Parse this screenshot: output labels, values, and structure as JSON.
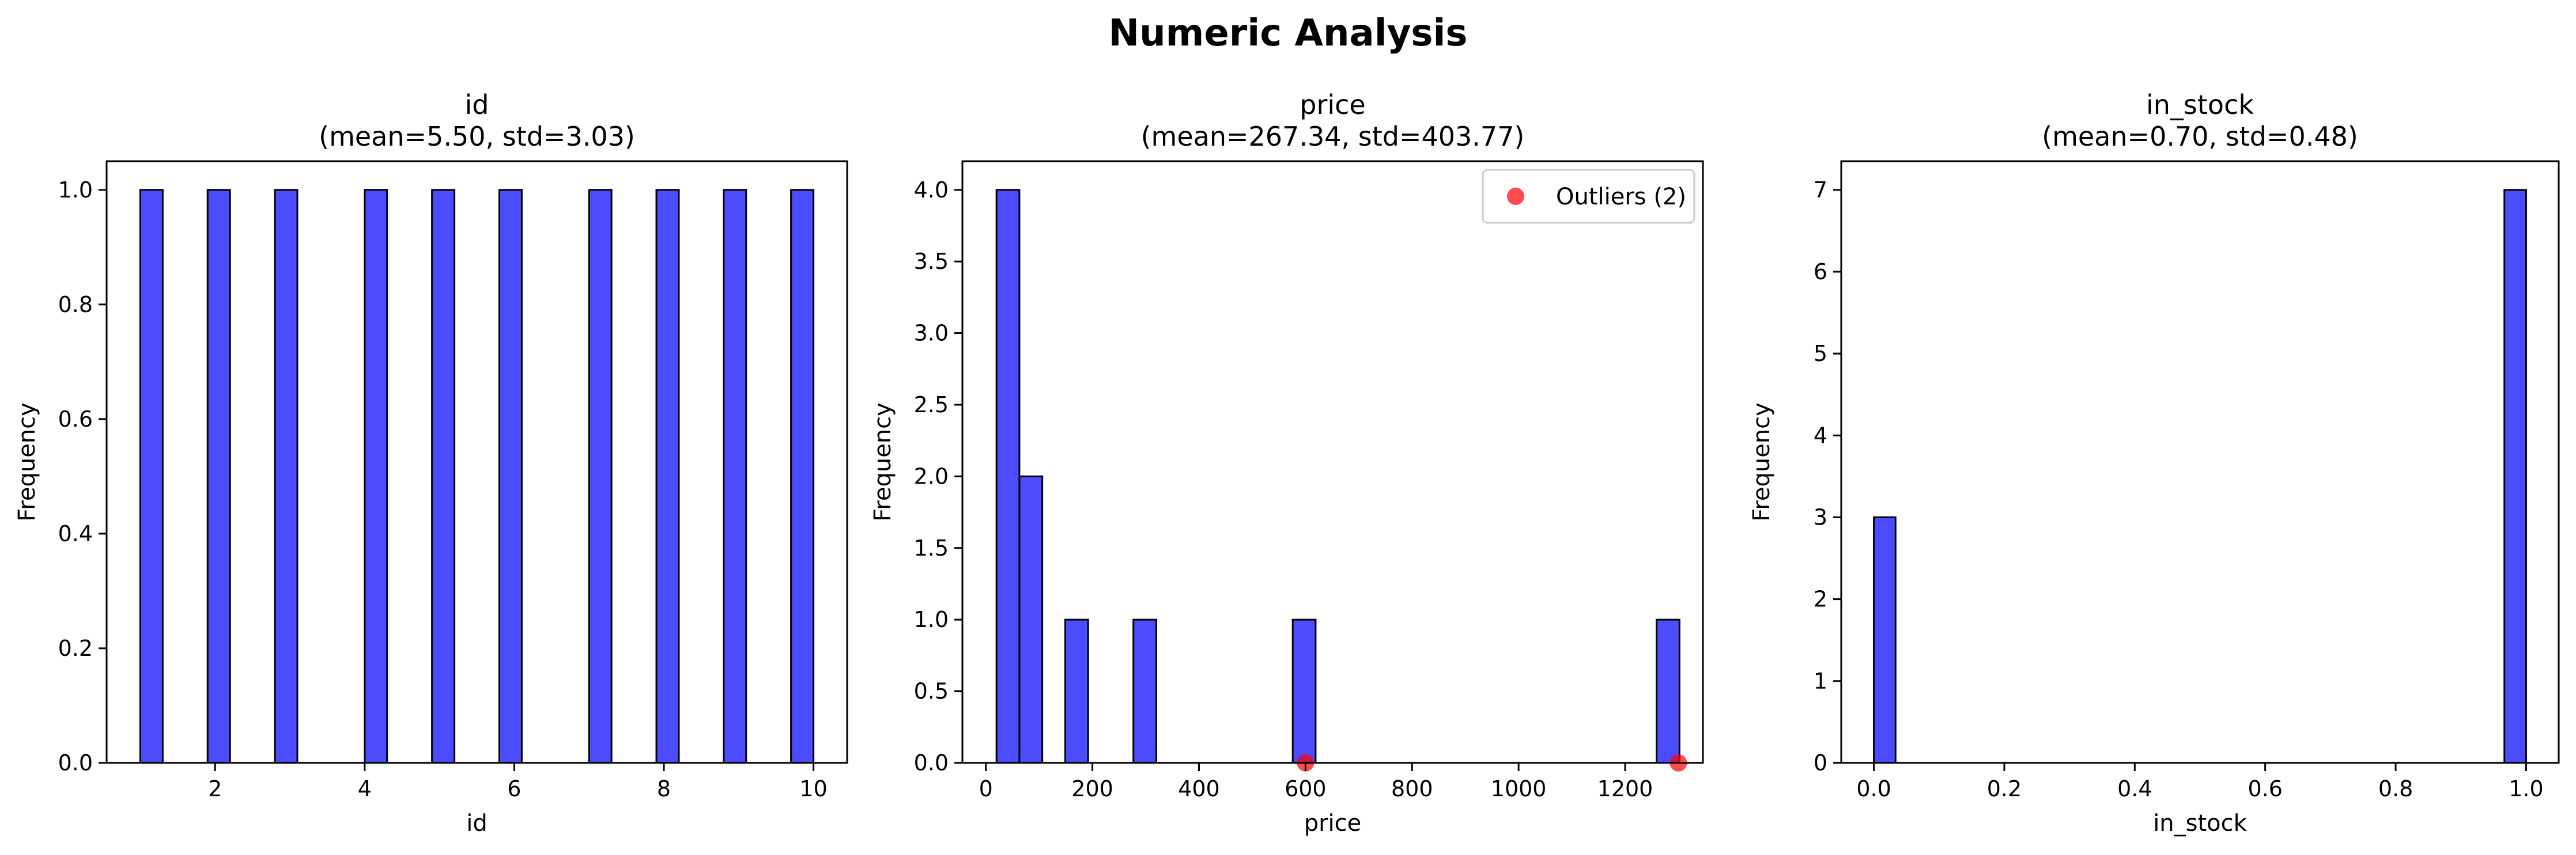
{
  "title": "Numeric Analysis",
  "colors": {
    "bar": "#0000ff",
    "bar_edge": "#000000",
    "outlier": "#ff0000"
  },
  "chart_data": [
    {
      "type": "bar",
      "title": "id",
      "subtitle": "(mean=5.50, std=3.03)",
      "xlabel": "id",
      "ylabel": "Frequency",
      "xlim": [
        0.55,
        10.45
      ],
      "ylim": [
        0,
        1.05
      ],
      "xticks": [
        2,
        4,
        6,
        8,
        10
      ],
      "xtick_labels": [
        "2",
        "4",
        "6",
        "8",
        "10"
      ],
      "yticks": [
        0,
        0.2,
        0.4,
        0.6,
        0.8,
        1.0
      ],
      "ytick_labels": [
        "0.0",
        "0.2",
        "0.4",
        "0.6",
        "0.8",
        "1.0"
      ],
      "bins": [
        {
          "x0": 1.0,
          "x1": 1.3,
          "value": 1
        },
        {
          "x0": 1.9,
          "x1": 2.2,
          "value": 1
        },
        {
          "x0": 2.8,
          "x1": 3.1,
          "value": 1
        },
        {
          "x0": 4.0,
          "x1": 4.3,
          "value": 1
        },
        {
          "x0": 4.9,
          "x1": 5.2,
          "value": 1
        },
        {
          "x0": 5.8,
          "x1": 6.1,
          "value": 1
        },
        {
          "x0": 7.0,
          "x1": 7.3,
          "value": 1
        },
        {
          "x0": 7.9,
          "x1": 8.2,
          "value": 1
        },
        {
          "x0": 8.8,
          "x1": 9.1,
          "value": 1
        },
        {
          "x0": 9.7,
          "x1": 10.0,
          "value": 1
        }
      ],
      "outliers": null
    },
    {
      "type": "bar",
      "title": "price",
      "subtitle": "(mean=267.34, std=403.77)",
      "xlabel": "price",
      "ylabel": "Frequency",
      "xlim": [
        -44,
        1346
      ],
      "ylim": [
        0,
        4.2
      ],
      "xticks": [
        0,
        200,
        400,
        600,
        800,
        1000,
        1200
      ],
      "xtick_labels": [
        "0",
        "200",
        "400",
        "600",
        "800",
        "1000",
        "1200"
      ],
      "yticks": [
        0,
        0.5,
        1.0,
        1.5,
        2.0,
        2.5,
        3.0,
        3.5,
        4.0
      ],
      "ytick_labels": [
        "0.0",
        "0.5",
        "1.0",
        "1.5",
        "2.0",
        "2.5",
        "3.0",
        "3.5",
        "4.0"
      ],
      "bins": [
        {
          "x0": 20,
          "x1": 63,
          "value": 4
        },
        {
          "x0": 63,
          "x1": 106,
          "value": 2
        },
        {
          "x0": 149,
          "x1": 192,
          "value": 1
        },
        {
          "x0": 277,
          "x1": 320,
          "value": 1
        },
        {
          "x0": 576,
          "x1": 619,
          "value": 1
        },
        {
          "x0": 1259,
          "x1": 1302,
          "value": 1
        }
      ],
      "outliers": {
        "label": "Outliers (2)",
        "x": [
          600,
          1300
        ],
        "y": [
          0,
          0
        ]
      }
    },
    {
      "type": "bar",
      "title": "in_stock",
      "subtitle": "(mean=0.70, std=0.48)",
      "xlabel": "in_stock",
      "ylabel": "Frequency",
      "xlim": [
        -0.05,
        1.05
      ],
      "ylim": [
        0,
        7.35
      ],
      "xticks": [
        0,
        0.2,
        0.4,
        0.6,
        0.8,
        1.0
      ],
      "xtick_labels": [
        "0.0",
        "0.2",
        "0.4",
        "0.6",
        "0.8",
        "1.0"
      ],
      "yticks": [
        0,
        1,
        2,
        3,
        4,
        5,
        6,
        7
      ],
      "ytick_labels": [
        "0",
        "1",
        "2",
        "3",
        "4",
        "5",
        "6",
        "7"
      ],
      "bins": [
        {
          "x0": 0.0,
          "x1": 0.0333,
          "value": 3
        },
        {
          "x0": 0.9667,
          "x1": 1.0,
          "value": 7
        }
      ],
      "outliers": null
    }
  ]
}
